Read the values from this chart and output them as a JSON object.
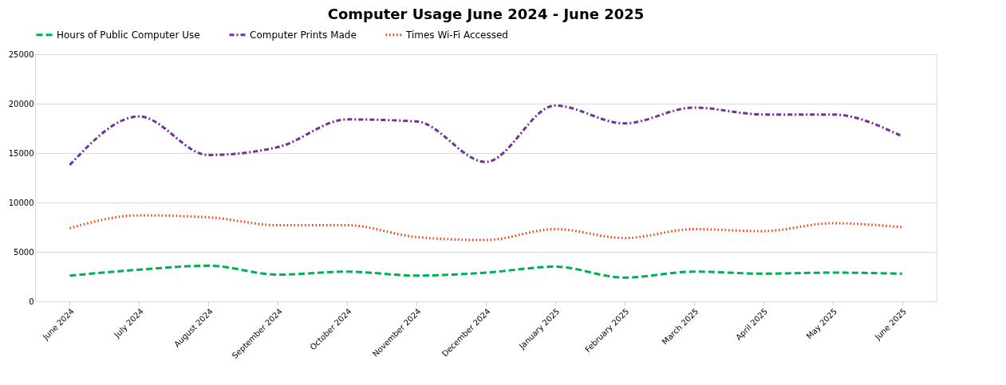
{
  "chart_data": {
    "type": "line",
    "title": "Computer Usage June 2024 - June 2025",
    "categories": [
      "June 2024",
      "July 2024",
      "August 2024",
      "September 2024",
      "October 2024",
      "November 2024",
      "December 2024",
      "January 2025",
      "February 2025",
      "March 2025",
      "April 2025",
      "May 2025",
      "June 2025"
    ],
    "series": [
      {
        "name": "Hours of Public Computer Use",
        "color": "#00b050",
        "line_style": "dashed",
        "values": [
          2600,
          3200,
          3600,
          2700,
          3000,
          2600,
          2900,
          3500,
          2400,
          3000,
          2800,
          2900,
          2800
        ]
      },
      {
        "name": "Computer Prints Made",
        "color": "#7030a0",
        "line_style": "dashdot",
        "values": [
          13800,
          18700,
          14800,
          15600,
          18400,
          18200,
          14100,
          19800,
          18000,
          19600,
          18900,
          18900,
          16700
        ]
      },
      {
        "name": "Times Wi-Fi Accessed",
        "color": "#ff3300",
        "line_style": "dotted",
        "values": [
          7400,
          8700,
          8500,
          7700,
          7700,
          6500,
          6200,
          7300,
          6400,
          7300,
          7100,
          7900,
          7500
        ]
      }
    ],
    "ylim": [
      0,
      25000
    ],
    "yticks": [
      0,
      5000,
      10000,
      15000,
      20000,
      25000
    ],
    "grid": "y",
    "legend": "top"
  }
}
